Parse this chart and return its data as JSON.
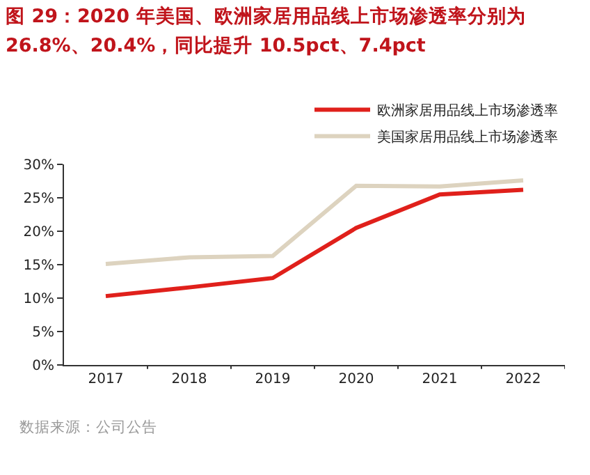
{
  "chart_data": {
    "type": "line",
    "title": "图 29：2020 年美国、欧洲家居用品线上市场渗透率分别为26.8%、20.4%，同比提升 10.5pct、7.4pct",
    "categories": [
      "2017",
      "2018",
      "2019",
      "2020",
      "2021",
      "2022"
    ],
    "series": [
      {
        "name": "欧洲家居用品线上市场渗透率",
        "color": "#e0201b",
        "values": [
          10.3,
          11.6,
          13.0,
          20.5,
          25.5,
          26.2
        ]
      },
      {
        "name": "美国家居用品线上市场渗透率",
        "color": "#ddd3bf",
        "values": [
          15.1,
          16.1,
          16.3,
          26.8,
          26.7,
          27.6
        ]
      }
    ],
    "ylim": [
      0,
      30
    ],
    "yticks": [
      {
        "value": 0,
        "label": "0%"
      },
      {
        "value": 5,
        "label": "5%"
      },
      {
        "value": 10,
        "label": "10%"
      },
      {
        "value": 15,
        "label": "15%"
      },
      {
        "value": 20,
        "label": "20%"
      },
      {
        "value": 25,
        "label": "25%"
      },
      {
        "value": 30,
        "label": "30%"
      }
    ],
    "grid": false,
    "legend": "top",
    "marker": "none",
    "line_style": "solid",
    "annotations": [
      "数据来源：公司公告"
    ]
  }
}
